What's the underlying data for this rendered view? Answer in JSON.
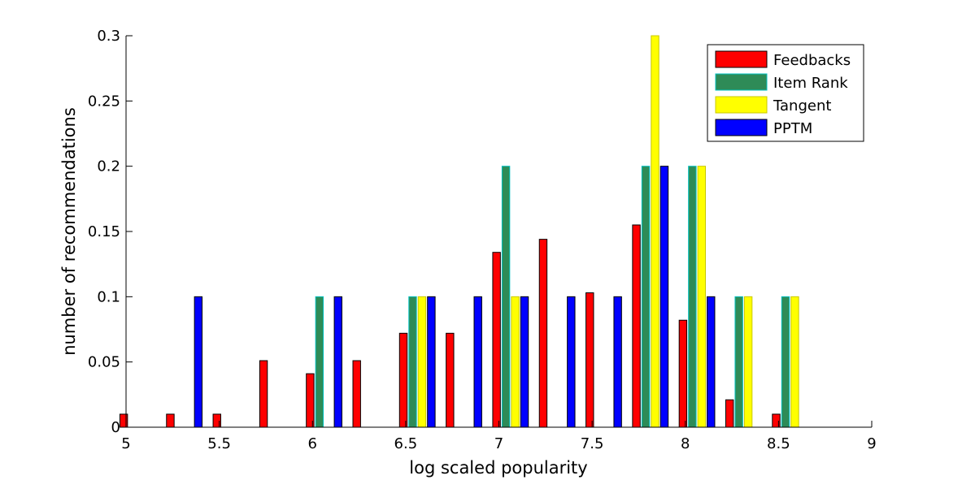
{
  "chart_data": {
    "type": "bar",
    "title": "",
    "xlabel": "log scaled popularity",
    "ylabel": "number of recommendations",
    "xlim": [
      5,
      9
    ],
    "ylim": [
      0,
      0.3
    ],
    "xticks": [
      5,
      5.5,
      6,
      6.5,
      7,
      7.5,
      8,
      8.5,
      9
    ],
    "yticks": [
      0,
      0.05,
      0.1,
      0.15,
      0.2,
      0.25,
      0.3
    ],
    "xtick_labels": [
      "5",
      "5.5",
      "6",
      "6.5",
      "7",
      "7.5",
      "8",
      "8.5",
      "9"
    ],
    "ytick_labels": [
      "0",
      "0.05",
      "0.1",
      "0.15",
      "0.2",
      "0.25",
      "0.3"
    ],
    "grid": false,
    "legend_position": "top-right",
    "x": [
      5.0625,
      5.3125,
      5.5625,
      5.8125,
      6.0625,
      6.3125,
      6.5625,
      6.8125,
      7.0625,
      7.3125,
      7.5625,
      7.8125,
      8.0625,
      8.3125,
      8.5625,
      8.8125
    ],
    "series": [
      {
        "name": "Feedbacks",
        "color": "#ff0000",
        "values": [
          0.01,
          0.01,
          0.01,
          0.051,
          0.041,
          0.051,
          0.072,
          0.072,
          0.134,
          0.144,
          0.103,
          0.155,
          0.082,
          0.021,
          0.01,
          0
        ]
      },
      {
        "name": "Item Rank",
        "color": "#2e8b57",
        "values": [
          0,
          0,
          0,
          0,
          0.1,
          0,
          0.1,
          0,
          0.2,
          0,
          0,
          0.2,
          0.2,
          0.1,
          0.1,
          0
        ]
      },
      {
        "name": "Tangent",
        "color": "#ffff00",
        "values": [
          0,
          0,
          0,
          0,
          0,
          0,
          0.1,
          0,
          0.1,
          0,
          0,
          0.3,
          0.2,
          0.1,
          0.1,
          0
        ]
      },
      {
        "name": "PPTM",
        "color": "#0000ff",
        "values": [
          0,
          0.1,
          0,
          0,
          0.1,
          0,
          0.1,
          0.1,
          0.1,
          0.1,
          0.1,
          0.2,
          0.1,
          0,
          0,
          0
        ]
      }
    ]
  }
}
